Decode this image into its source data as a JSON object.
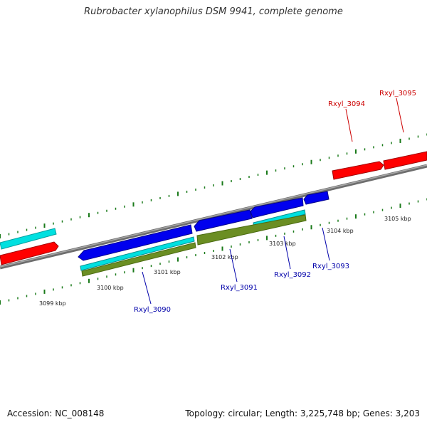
{
  "title": "Rubrobacter xylanophilus DSM 9941, complete genome",
  "footer": {
    "accession": "Accession: NC_008148",
    "summary": "Topology: circular; Length: 3,225,748 bp; Genes: 3,203"
  },
  "colors": {
    "backbone": "#808080",
    "ruler_ticks": "#1a7a1a",
    "forward_gene": "#ff0000",
    "reverse_gene": "#0000ee",
    "cyan_feature": "#00e0e0",
    "olive_feature": "#6b8e23",
    "forward_label": "#cc0000",
    "reverse_label": "#0000aa"
  },
  "ticks_outer": [
    "3105 kbp",
    "3104 kbp",
    "3103 kbp",
    "3102 kbp",
    "3101 kbp",
    "3100 kbp",
    "3099 kbp"
  ],
  "genes": [
    {
      "label": "Rxyl_3094",
      "strand": "forward"
    },
    {
      "label": "Rxyl_3095",
      "strand": "forward"
    },
    {
      "label": "Rxyl_3090",
      "strand": "reverse"
    },
    {
      "label": "Rxyl_3091",
      "strand": "reverse"
    },
    {
      "label": "Rxyl_3092",
      "strand": "reverse"
    },
    {
      "label": "Rxyl_3093",
      "strand": "reverse"
    }
  ]
}
